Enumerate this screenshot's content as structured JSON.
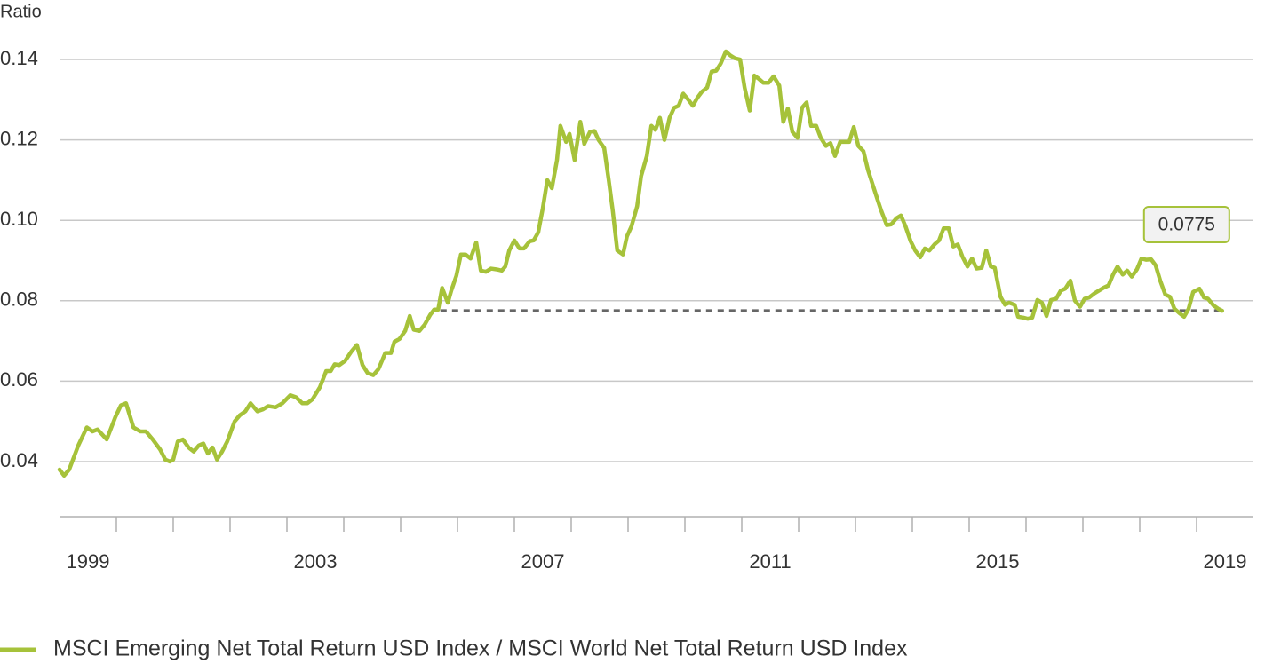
{
  "chart_data": {
    "type": "line",
    "y_label": "Ratio",
    "xlim": [
      1999,
      2020
    ],
    "ylim": [
      0.0263,
      0.1548
    ],
    "yticks": [
      0.04,
      0.06,
      0.08,
      {
        "value": 0.1,
        "label": "0.10"
      },
      0.12,
      0.14
    ],
    "xticks": [
      {
        "value": 1999.5,
        "label": "1999"
      },
      {
        "value": 2003.5,
        "label": "2003"
      },
      {
        "value": 2007.5,
        "label": "2007"
      },
      {
        "value": 2011.5,
        "label": "2011"
      },
      {
        "value": 2015.5,
        "label": "2015"
      },
      {
        "value": 2019.5,
        "label": "2019"
      }
    ],
    "xtick_marks": [
      2000,
      2001,
      2002,
      2003,
      2004,
      2005,
      2006,
      2007,
      2008,
      2009,
      2010,
      2011,
      2012,
      2013,
      2014,
      2015,
      2016,
      2017,
      2018,
      2019
    ],
    "grid": true,
    "reference": {
      "value": 0.0775,
      "label": "0.0775",
      "x_start": 2005.7,
      "color": "#666666"
    },
    "series": [
      {
        "name": "MSCI Emerging Net Total Return USD Index / MSCI World Net Total Return USD Index",
        "color": "#a6c23a",
        "x": [
          1999.0,
          1999.08,
          1999.17,
          1999.33,
          1999.48,
          1999.58,
          1999.67,
          1999.83,
          1999.98,
          2000.08,
          2000.17,
          2000.3,
          2000.42,
          2000.52,
          2000.64,
          2000.77,
          2000.86,
          2000.94,
          2001.0,
          2001.08,
          2001.17,
          2001.27,
          2001.36,
          2001.45,
          2001.53,
          2001.61,
          2001.69,
          2001.77,
          2001.86,
          2001.95,
          2002.08,
          2002.17,
          2002.27,
          2002.36,
          2002.48,
          2002.58,
          2002.67,
          2002.8,
          2002.92,
          2003.06,
          2003.16,
          2003.27,
          2003.36,
          2003.45,
          2003.58,
          2003.69,
          2003.77,
          2003.84,
          2003.92,
          2004.02,
          2004.14,
          2004.23,
          2004.33,
          2004.42,
          2004.52,
          2004.61,
          2004.73,
          2004.83,
          2004.89,
          2004.98,
          2005.08,
          2005.16,
          2005.23,
          2005.33,
          2005.42,
          2005.52,
          2005.59,
          2005.66,
          2005.73,
          2005.83,
          2005.89,
          2005.98,
          2006.06,
          2006.14,
          2006.23,
          2006.33,
          2006.41,
          2006.5,
          2006.59,
          2006.69,
          2006.78,
          2006.84,
          2006.91,
          2007.0,
          2007.09,
          2007.17,
          2007.27,
          2007.34,
          2007.42,
          2007.5,
          2007.58,
          2007.66,
          2007.75,
          2007.81,
          2007.91,
          2007.97,
          2008.06,
          2008.16,
          2008.23,
          2008.33,
          2008.41,
          2008.48,
          2008.58,
          2008.66,
          2008.73,
          2008.81,
          2008.91,
          2008.98,
          2009.06,
          2009.16,
          2009.23,
          2009.33,
          2009.41,
          2009.48,
          2009.56,
          2009.64,
          2009.73,
          2009.81,
          2009.89,
          2009.97,
          2010.06,
          2010.14,
          2010.22,
          2010.3,
          2010.39,
          2010.47,
          2010.55,
          2010.63,
          2010.72,
          2010.8,
          2010.88,
          2010.97,
          2011.05,
          2011.14,
          2011.22,
          2011.3,
          2011.38,
          2011.47,
          2011.56,
          2011.66,
          2011.73,
          2011.81,
          2011.89,
          2011.98,
          2012.06,
          2012.14,
          2012.22,
          2012.31,
          2012.39,
          2012.48,
          2012.56,
          2012.64,
          2012.73,
          2012.81,
          2012.89,
          2012.97,
          2013.05,
          2013.14,
          2013.22,
          2013.38,
          2013.45,
          2013.55,
          2013.63,
          2013.72,
          2013.8,
          2013.88,
          2013.97,
          2014.05,
          2014.14,
          2014.22,
          2014.3,
          2014.39,
          2014.47,
          2014.55,
          2014.64,
          2014.72,
          2014.8,
          2014.88,
          2014.97,
          2015.05,
          2015.13,
          2015.22,
          2015.3,
          2015.38,
          2015.45,
          2015.55,
          2015.63,
          2015.7,
          2015.8,
          2015.86,
          2015.95,
          2016.03,
          2016.11,
          2016.2,
          2016.28,
          2016.36,
          2016.44,
          2016.53,
          2016.61,
          2016.69,
          2016.78,
          2016.86,
          2016.95,
          2017.03,
          2017.11,
          2017.2,
          2017.28,
          2017.36,
          2017.45,
          2017.53,
          2017.61,
          2017.7,
          2017.78,
          2017.86,
          2017.95,
          2018.03,
          2018.11,
          2018.2,
          2018.28,
          2018.36,
          2018.45,
          2018.53,
          2018.61,
          2018.69,
          2018.78,
          2018.86,
          2018.94,
          2019.05,
          2019.13,
          2019.2,
          2019.3,
          2019.38,
          2019.45
        ],
        "values": [
          0.038,
          0.0365,
          0.038,
          0.044,
          0.0485,
          0.0475,
          0.048,
          0.0455,
          0.051,
          0.054,
          0.0545,
          0.0485,
          0.0475,
          0.0475,
          0.0455,
          0.043,
          0.0405,
          0.04,
          0.0405,
          0.045,
          0.0455,
          0.0435,
          0.0425,
          0.044,
          0.0445,
          0.042,
          0.0435,
          0.0405,
          0.0425,
          0.045,
          0.05,
          0.0515,
          0.0525,
          0.0545,
          0.0525,
          0.053,
          0.0538,
          0.0535,
          0.0545,
          0.0565,
          0.056,
          0.0545,
          0.0545,
          0.0555,
          0.0585,
          0.0625,
          0.0625,
          0.0642,
          0.064,
          0.065,
          0.0675,
          0.069,
          0.064,
          0.062,
          0.0615,
          0.063,
          0.067,
          0.067,
          0.0698,
          0.0705,
          0.0725,
          0.0762,
          0.0728,
          0.0725,
          0.074,
          0.0765,
          0.0778,
          0.0778,
          0.0832,
          0.0795,
          0.0825,
          0.0862,
          0.0915,
          0.0915,
          0.0905,
          0.0945,
          0.0875,
          0.0872,
          0.088,
          0.0878,
          0.0875,
          0.0885,
          0.0925,
          0.095,
          0.093,
          0.093,
          0.0948,
          0.095,
          0.097,
          0.103,
          0.11,
          0.108,
          0.115,
          0.1235,
          0.1195,
          0.1215,
          0.115,
          0.1245,
          0.119,
          0.122,
          0.1222,
          0.12,
          0.118,
          0.11,
          0.1025,
          0.0925,
          0.0915,
          0.096,
          0.0985,
          0.1035,
          0.111,
          0.116,
          0.1235,
          0.1225,
          0.1255,
          0.12,
          0.1255,
          0.128,
          0.1285,
          0.1315,
          0.13,
          0.1285,
          0.1305,
          0.132,
          0.133,
          0.137,
          0.1372,
          0.139,
          0.142,
          0.141,
          0.1403,
          0.14,
          0.133,
          0.1273,
          0.136,
          0.1352,
          0.1342,
          0.1342,
          0.1358,
          0.1335,
          0.1245,
          0.1278,
          0.122,
          0.1205,
          0.128,
          0.1293,
          0.1235,
          0.1235,
          0.1205,
          0.1185,
          0.1192,
          0.116,
          0.1195,
          0.1195,
          0.1195,
          0.1232,
          0.1185,
          0.1172,
          0.1125,
          0.1055,
          0.1025,
          0.0988,
          0.099,
          0.1005,
          0.1012,
          0.0985,
          0.0948,
          0.0925,
          0.0908,
          0.093,
          0.0925,
          0.094,
          0.095,
          0.098,
          0.098,
          0.0935,
          0.094,
          0.091,
          0.0885,
          0.0905,
          0.088,
          0.0882,
          0.0925,
          0.0885,
          0.0882,
          0.081,
          0.079,
          0.0795,
          0.079,
          0.076,
          0.0758,
          0.0755,
          0.0758,
          0.0802,
          0.0795,
          0.0762,
          0.0802,
          0.0805,
          0.0825,
          0.083,
          0.085,
          0.08,
          0.0785,
          0.0805,
          0.0808,
          0.0818,
          0.0825,
          0.0832,
          0.0838,
          0.0865,
          0.0885,
          0.0865,
          0.0875,
          0.086,
          0.0878,
          0.0905,
          0.0902,
          0.0903,
          0.0888,
          0.085,
          0.0815,
          0.081,
          0.078,
          0.077,
          0.076,
          0.078,
          0.0822,
          0.083,
          0.0808,
          0.0805,
          0.0788,
          0.078,
          0.0775
        ]
      }
    ]
  }
}
